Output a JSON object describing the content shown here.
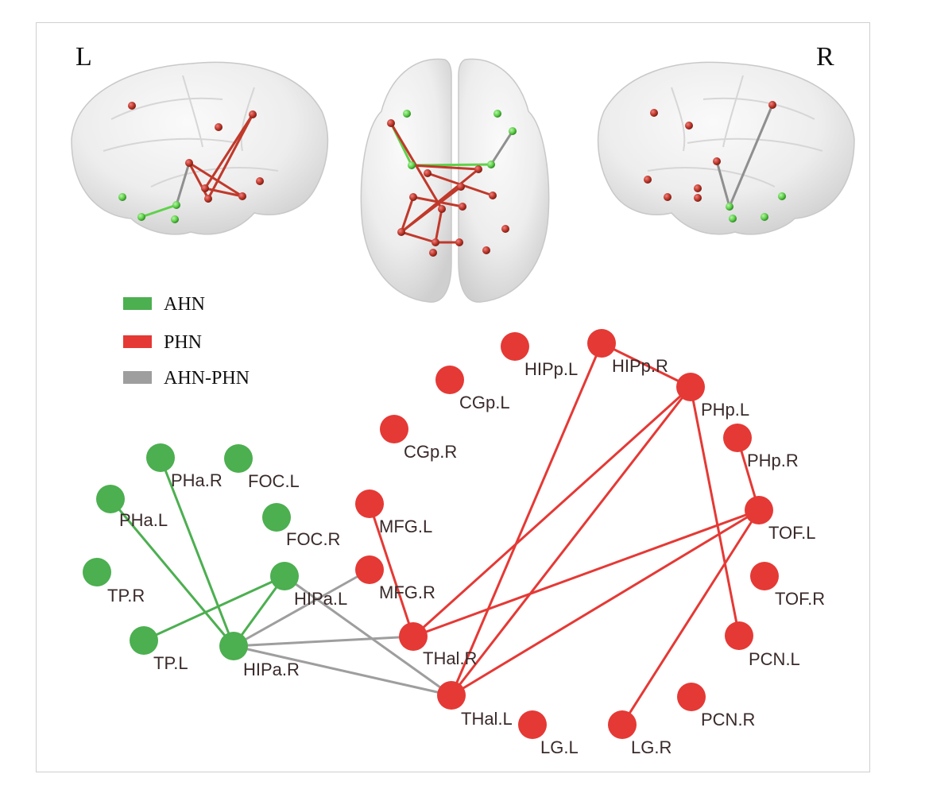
{
  "colors": {
    "ahn": "#4caf50",
    "phn": "#e53935",
    "ahn_phn": "#9e9e9e",
    "ahn_node": "#4caf50",
    "phn_node": "#e53935"
  },
  "hemisphere": {
    "left": "L",
    "right": "R"
  },
  "legend": [
    {
      "key": "ahn",
      "label": "AHN"
    },
    {
      "key": "phn",
      "label": "PHN"
    },
    {
      "key": "ahn_phn",
      "label": "AHN-PHN"
    }
  ],
  "network": {
    "nodes": [
      {
        "id": "PHa.R",
        "label": "PHa.R",
        "group": "ahn"
      },
      {
        "id": "FOC.L",
        "label": "FOC.L",
        "group": "ahn"
      },
      {
        "id": "PHa.L",
        "label": "PHa.L",
        "group": "ahn"
      },
      {
        "id": "FOC.R",
        "label": "FOC.R",
        "group": "ahn"
      },
      {
        "id": "TP.R",
        "label": "TP.R",
        "group": "ahn"
      },
      {
        "id": "HIPa.L",
        "label": "HIPa.L",
        "group": "ahn"
      },
      {
        "id": "TP.L",
        "label": "TP.L",
        "group": "ahn"
      },
      {
        "id": "HIPa.R",
        "label": "HIPa.R",
        "group": "ahn"
      },
      {
        "id": "HIPp.L",
        "label": "HIPp.L",
        "group": "phn"
      },
      {
        "id": "HIPp.R",
        "label": "HIPp.R",
        "group": "phn"
      },
      {
        "id": "CGp.L",
        "label": "CGp.L",
        "group": "phn"
      },
      {
        "id": "PHp.L",
        "label": "PHp.L",
        "group": "phn"
      },
      {
        "id": "CGp.R",
        "label": "CGp.R",
        "group": "phn"
      },
      {
        "id": "PHp.R",
        "label": "PHp.R",
        "group": "phn"
      },
      {
        "id": "MFG.L",
        "label": "MFG.L",
        "group": "phn"
      },
      {
        "id": "TOF.L",
        "label": "TOF.L",
        "group": "phn"
      },
      {
        "id": "MFG.R",
        "label": "MFG.R",
        "group": "phn"
      },
      {
        "id": "TOF.R",
        "label": "TOF.R",
        "group": "phn"
      },
      {
        "id": "THal.R",
        "label": "THal.R",
        "group": "phn"
      },
      {
        "id": "PCN.L",
        "label": "PCN.L",
        "group": "phn"
      },
      {
        "id": "THal.L",
        "label": "THal.L",
        "group": "phn"
      },
      {
        "id": "PCN.R",
        "label": "PCN.R",
        "group": "phn"
      },
      {
        "id": "LG.L",
        "label": "LG.L",
        "group": "phn"
      },
      {
        "id": "LG.R",
        "label": "LG.R",
        "group": "phn"
      }
    ],
    "edges": [
      {
        "source": "PHa.R",
        "target": "HIPa.R",
        "type": "ahn"
      },
      {
        "source": "PHa.L",
        "target": "HIPa.R",
        "type": "ahn"
      },
      {
        "source": "TP.L",
        "target": "HIPa.L",
        "type": "ahn"
      },
      {
        "source": "HIPa.L",
        "target": "HIPa.R",
        "type": "ahn"
      },
      {
        "source": "HIPa.R",
        "target": "THal.R",
        "type": "ahn_phn"
      },
      {
        "source": "HIPa.R",
        "target": "THal.L",
        "type": "ahn_phn"
      },
      {
        "source": "HIPa.L",
        "target": "THal.L",
        "type": "ahn_phn"
      },
      {
        "source": "HIPa.R",
        "target": "MFG.R",
        "type": "ahn_phn"
      },
      {
        "source": "HIPp.R",
        "target": "PHp.L",
        "type": "phn"
      },
      {
        "source": "HIPp.R",
        "target": "THal.L",
        "type": "phn"
      },
      {
        "source": "PHp.L",
        "target": "THal.R",
        "type": "phn"
      },
      {
        "source": "PHp.L",
        "target": "THal.L",
        "type": "phn"
      },
      {
        "source": "PHp.L",
        "target": "PCN.L",
        "type": "phn"
      },
      {
        "source": "PHp.R",
        "target": "TOF.L",
        "type": "phn"
      },
      {
        "source": "MFG.L",
        "target": "THal.R",
        "type": "phn"
      },
      {
        "source": "TOF.L",
        "target": "THal.R",
        "type": "phn"
      },
      {
        "source": "TOF.L",
        "target": "THal.L",
        "type": "phn"
      },
      {
        "source": "TOF.L",
        "target": "LG.R",
        "type": "phn"
      }
    ]
  }
}
